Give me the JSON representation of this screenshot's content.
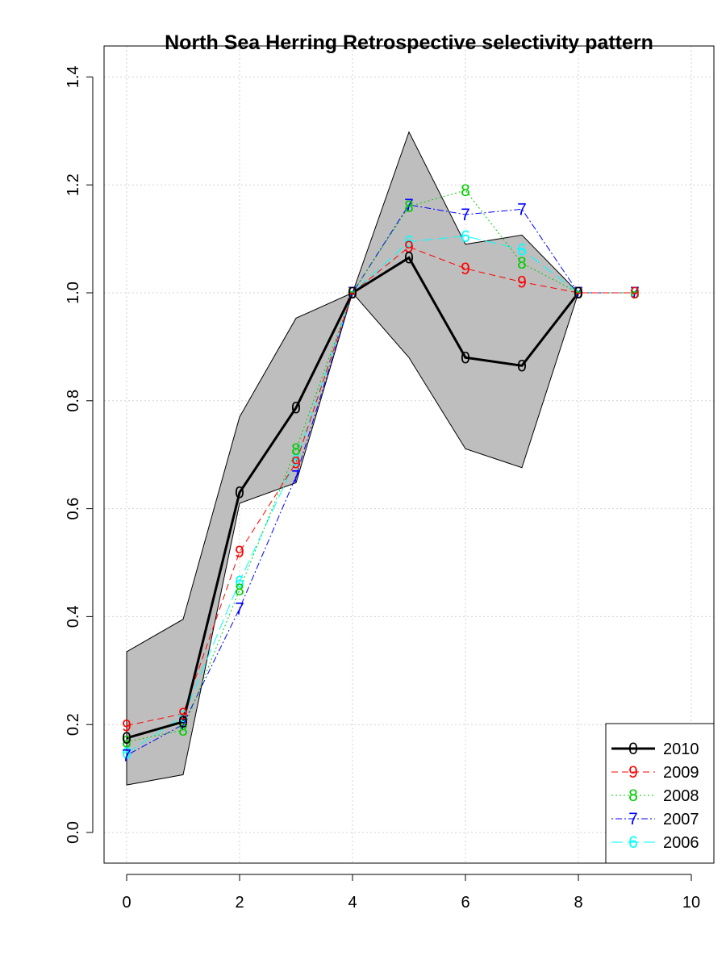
{
  "chart_data": {
    "type": "line",
    "title": "North Sea Herring Retrospective selectivity pattern",
    "xlabel": "",
    "ylabel": "",
    "xlim": [
      0,
      10
    ],
    "ylim": [
      0,
      1.4
    ],
    "x_ticks": [
      "0",
      "2",
      "4",
      "6",
      "8",
      "10"
    ],
    "y_ticks": [
      "0.0",
      "0.2",
      "0.4",
      "0.6",
      "0.8",
      "1.0",
      "1.2",
      "1.4"
    ],
    "grid": true,
    "legend_position": "bottom-right",
    "band": {
      "color": "#bebebe",
      "x": [
        0,
        1,
        2,
        3,
        4,
        5,
        6,
        7,
        8
      ],
      "upper": [
        0.335,
        0.395,
        0.77,
        0.953,
        1.0,
        1.298,
        1.09,
        1.107,
        1.0
      ],
      "lower": [
        0.088,
        0.107,
        0.61,
        0.648,
        1.0,
        0.88,
        0.711,
        0.676,
        1.0
      ]
    },
    "series": [
      {
        "name": "2010",
        "marker": "0",
        "color": "#000000",
        "line": "solid",
        "x": [
          0,
          1,
          2,
          3,
          4,
          5,
          6,
          7,
          8
        ],
        "values": [
          0.175,
          0.205,
          0.63,
          0.787,
          1.0,
          1.065,
          0.88,
          0.865,
          1.0
        ]
      },
      {
        "name": "2009",
        "marker": "9",
        "color": "#ff0000",
        "line": "dashed",
        "x": [
          0,
          1,
          2,
          3,
          4,
          5,
          6,
          7,
          8,
          9
        ],
        "values": [
          0.198,
          0.22,
          0.52,
          0.685,
          1.0,
          1.085,
          1.045,
          1.02,
          1.0,
          1.0
        ]
      },
      {
        "name": "2008",
        "marker": "8",
        "color": "#00cd00",
        "line": "dotted",
        "x": [
          0,
          1,
          2,
          3,
          4,
          5,
          6,
          7,
          8,
          9
        ],
        "values": [
          0.168,
          0.19,
          0.45,
          0.71,
          1.0,
          1.16,
          1.19,
          1.055,
          1.0,
          1.0
        ]
      },
      {
        "name": "2007",
        "marker": "7",
        "color": "#0000ff",
        "line": "dotdash",
        "x": [
          0,
          1,
          2,
          3,
          4,
          5,
          6,
          7,
          8,
          9
        ],
        "values": [
          0.143,
          0.2,
          0.415,
          0.66,
          1.0,
          1.163,
          1.145,
          1.155,
          1.0,
          1.0
        ]
      },
      {
        "name": "2006",
        "marker": "6",
        "color": "#00ffff",
        "line": "longdash",
        "x": [
          0,
          1,
          2,
          3,
          4,
          5,
          6,
          7,
          8,
          9
        ],
        "values": [
          0.147,
          0.215,
          0.465,
          0.69,
          1.0,
          1.095,
          1.105,
          1.08,
          1.0,
          1.0
        ]
      }
    ]
  }
}
